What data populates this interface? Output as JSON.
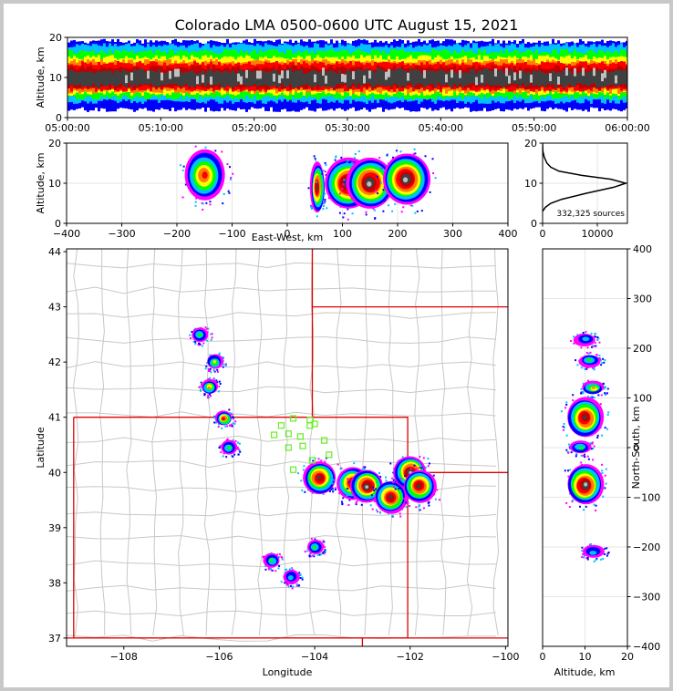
{
  "title": "Colorado LMA 0500-0600 UTC August 15, 2021",
  "colors": {
    "density_ramp": [
      "#ff00ff",
      "#0000ff",
      "#00c0ff",
      "#00ff00",
      "#ffff00",
      "#ff8000",
      "#ff0000",
      "#c00000",
      "#404040",
      "#c0c0c0"
    ],
    "state_lines": "#e00000",
    "county_lines": "#c8c8c8",
    "station_markers": "#66ee22"
  },
  "chart_data": [
    {
      "id": "time_altitude",
      "type": "heatmap",
      "xlabel": "",
      "ylabel": "Altitude, km",
      "xticks": [
        "05:00:00",
        "05:10:00",
        "05:20:00",
        "05:30:00",
        "05:40:00",
        "05:50:00",
        "06:00:00"
      ],
      "xlim_minutes": [
        0,
        60
      ],
      "ylim": [
        0,
        20
      ],
      "yticks": [
        0,
        10,
        20
      ],
      "band": {
        "core_km": [
          8,
          13
        ],
        "spread_km": [
          2,
          19
        ]
      }
    },
    {
      "id": "eastwest_altitude",
      "type": "heatmap",
      "xlabel": "East-West, km",
      "ylabel": "Altitude, km",
      "xlim": [
        -400,
        400
      ],
      "xticks": [
        -400,
        -300,
        -200,
        -100,
        0,
        100,
        200,
        300,
        400
      ],
      "ylim": [
        0,
        20
      ],
      "yticks": [
        0,
        10,
        20
      ],
      "clusters": [
        {
          "x": -150,
          "alt": 12,
          "intensity": 5
        },
        {
          "x": 55,
          "alt": 9,
          "intensity": 7
        },
        {
          "x": 110,
          "alt": 10,
          "intensity": 8
        },
        {
          "x": 150,
          "alt": 10,
          "intensity": 9
        },
        {
          "x": 215,
          "alt": 11,
          "intensity": 9
        }
      ]
    },
    {
      "id": "altitude_histogram",
      "type": "line",
      "xlabel": "",
      "ylabel": "",
      "xlim": [
        0,
        15500
      ],
      "xticks": [
        0,
        10000
      ],
      "ylim": [
        0,
        20
      ],
      "yticks": [
        0,
        10,
        20
      ],
      "annotation": "332,325 sources",
      "x_counts": [
        0,
        500,
        1500,
        3500,
        8000,
        13000,
        15200,
        12500,
        7000,
        3000,
        1500,
        800,
        300,
        50,
        0
      ],
      "y_alt": [
        3,
        4,
        5,
        6,
        7.5,
        9,
        10,
        11,
        12,
        13,
        14,
        15,
        16.5,
        18,
        20
      ]
    },
    {
      "id": "plan_view",
      "type": "heatmap",
      "xlabel": "Longitude",
      "ylabel": "Latitude",
      "xlim": [
        -109.2,
        -99.95
      ],
      "ylim": [
        36.85,
        44.05
      ],
      "xticks": [
        -108,
        -106,
        -104,
        -102,
        -100
      ],
      "yticks": [
        37,
        38,
        39,
        40,
        41,
        42,
        43,
        44
      ],
      "clusters": [
        {
          "lon": -106.4,
          "lat": 42.48,
          "intensity": 2
        },
        {
          "lon": -106.1,
          "lat": 42.0,
          "intensity": 3
        },
        {
          "lon": -106.2,
          "lat": 41.55,
          "intensity": 4
        },
        {
          "lon": -105.9,
          "lat": 40.98,
          "intensity": 6
        },
        {
          "lon": -105.8,
          "lat": 40.45,
          "intensity": 2
        },
        {
          "lon": -104.9,
          "lat": 38.4,
          "intensity": 2
        },
        {
          "lon": -104.5,
          "lat": 38.1,
          "intensity": 1
        },
        {
          "lon": -103.9,
          "lat": 39.9,
          "intensity": 7
        },
        {
          "lon": -104.0,
          "lat": 38.65,
          "intensity": 2
        },
        {
          "lon": -103.2,
          "lat": 39.8,
          "intensity": 7
        },
        {
          "lon": -102.9,
          "lat": 39.75,
          "intensity": 8
        },
        {
          "lon": -102.4,
          "lat": 39.55,
          "intensity": 7
        },
        {
          "lon": -102.0,
          "lat": 40.0,
          "intensity": 9
        },
        {
          "lon": -101.8,
          "lat": 39.75,
          "intensity": 7
        }
      ],
      "stations": [
        [
          -104.45,
          40.98
        ],
        [
          -104.7,
          40.85
        ],
        [
          -104.1,
          40.95
        ],
        [
          -104.0,
          40.88
        ],
        [
          -104.85,
          40.68
        ],
        [
          -104.55,
          40.7
        ],
        [
          -104.3,
          40.65
        ],
        [
          -104.55,
          40.45
        ],
        [
          -104.25,
          40.48
        ],
        [
          -103.8,
          40.58
        ],
        [
          -103.7,
          40.32
        ],
        [
          -104.05,
          40.22
        ],
        [
          -104.45,
          40.05
        ],
        [
          -104.1,
          40.85
        ]
      ]
    },
    {
      "id": "altitude_northsouth",
      "type": "heatmap",
      "xlabel": "Altitude, km",
      "ylabel": "North-South, km",
      "xlim": [
        0,
        20
      ],
      "xticks": [
        0,
        10,
        20
      ],
      "ylim": [
        -400,
        400
      ],
      "yticks": [
        -400,
        -300,
        -200,
        -100,
        0,
        100,
        200,
        300,
        400
      ],
      "clusters": [
        {
          "alt": 10,
          "ns": 218,
          "intensity": 1
        },
        {
          "alt": 11,
          "ns": 175,
          "intensity": 2
        },
        {
          "alt": 12,
          "ns": 120,
          "intensity": 4
        },
        {
          "alt": 10,
          "ns": 60,
          "intensity": 7
        },
        {
          "alt": 9,
          "ns": 0,
          "intensity": 2
        },
        {
          "alt": 10,
          "ns": -75,
          "intensity": 9
        },
        {
          "alt": 12,
          "ns": -210,
          "intensity": 1
        }
      ]
    }
  ]
}
